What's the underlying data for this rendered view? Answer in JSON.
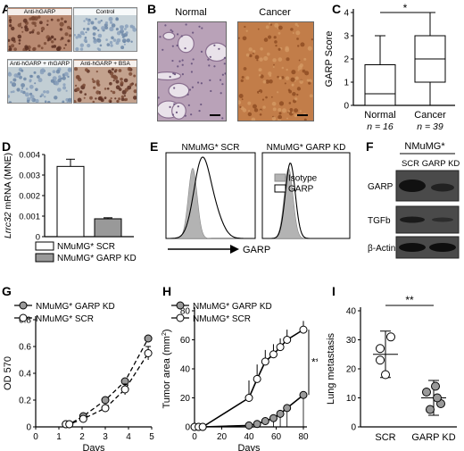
{
  "panels": {
    "A": {
      "label": "A",
      "tiles": [
        {
          "caption": "Anti-hGARP",
          "color": "#b98a72"
        },
        {
          "caption": "Control",
          "color": "#c9d4da"
        },
        {
          "caption": "Anti-hGARP + rhGARP",
          "color": "#c2ced4"
        },
        {
          "caption": "Anti-hGARP + BSA",
          "color": "#c3a28e"
        }
      ]
    },
    "B": {
      "label": "B",
      "tiles": [
        {
          "caption": "Normal",
          "color": "#b9a2b8"
        },
        {
          "caption": "Cancer",
          "color": "#c27d49"
        }
      ]
    },
    "C": {
      "label": "C",
      "significance": "*",
      "chart_data": {
        "type": "box",
        "ylabel": "GARP Score",
        "ylim": [
          0,
          4
        ],
        "yticks": [
          "0",
          "1",
          "2",
          "3",
          "4"
        ],
        "categories": [
          "Normal",
          "Cancer"
        ],
        "n_labels": [
          "n = 16",
          "n = 39"
        ],
        "boxes": [
          {
            "min": 0,
            "q1": 0,
            "median": 0.5,
            "q3": 1.75,
            "max": 3
          },
          {
            "min": 0,
            "q1": 1,
            "median": 2,
            "q3": 3,
            "max": 4
          }
        ]
      }
    },
    "D": {
      "label": "D",
      "ylabel_italic": "Lrrc32",
      "ylabel_rest": " mRNA (MNE)",
      "chart_data": {
        "type": "bar",
        "ylim": [
          0,
          0.004
        ],
        "yticks": [
          "0",
          "0.001",
          "0.002",
          "0.003",
          "0.004"
        ],
        "series": [
          {
            "name": "NMuMG* SCR",
            "value": 0.00342,
            "error": 0.00035,
            "color": "#ffffff"
          },
          {
            "name": "NMuMG* GARP KD",
            "value": 0.00087,
            "error": 5e-05,
            "color": "#999999"
          }
        ]
      }
    },
    "E": {
      "label": "E",
      "plots": [
        "NMuMG* SCR",
        "NMuMG* GARP KD"
      ],
      "legend": [
        "Isotype",
        "GARP"
      ],
      "xlabel": "GARP"
    },
    "F": {
      "label": "F",
      "header": "NMuMG*",
      "columns": [
        "SCR",
        "GARP KD"
      ],
      "rows": [
        "GARP",
        "TGFb",
        "β-Actin"
      ]
    },
    "G": {
      "label": "G",
      "chart_data": {
        "type": "line",
        "xlabel": "Days",
        "ylabel": "OD 570",
        "xlim": [
          0,
          5
        ],
        "ylim": [
          0,
          0.8
        ],
        "xticks": [
          "0",
          "1",
          "2",
          "3",
          "4",
          "5"
        ],
        "yticks": [
          "0",
          "0.2",
          "0.4",
          "0.6",
          "0.8"
        ],
        "series": [
          {
            "name": "NMuMG* GARP KD",
            "fill": "#999999",
            "x": [
              1.3,
              1.45,
              2.05,
              3.0,
              3.85,
              4.85
            ],
            "y": [
              0.02,
              0.02,
              0.08,
              0.2,
              0.34,
              0.66
            ]
          },
          {
            "name": "NMuMG* SCR",
            "fill": "#ffffff",
            "x": [
              1.3,
              1.45,
              2.05,
              3.0,
              3.85,
              4.85
            ],
            "y": [
              0.02,
              0.02,
              0.06,
              0.14,
              0.28,
              0.55
            ],
            "err": [
              0,
              0,
              0,
              0,
              0.04,
              0.05
            ]
          }
        ]
      }
    },
    "H": {
      "label": "H",
      "significance": "**",
      "chart_data": {
        "type": "line",
        "xlabel": "Days",
        "ylabel_main": "Tumor area (mm",
        "ylabel_sup": "2",
        "ylabel_end": ")",
        "xlim": [
          0,
          80
        ],
        "ylim": [
          0,
          80
        ],
        "xticks": [
          "0",
          "20",
          "40",
          "60",
          "80"
        ],
        "yticks": [
          "0",
          "20",
          "40",
          "60",
          "80"
        ],
        "series": [
          {
            "name": "NMuMG* GARP KD",
            "fill": "#999999",
            "x": [
              0,
              3,
              6,
              40,
              46,
              52,
              58,
              63,
              68,
              80
            ],
            "y": [
              0,
              0,
              0,
              1,
              2,
              4,
              6,
              9,
              13,
              22
            ]
          },
          {
            "name": "NMuMG* SCR",
            "fill": "#ffffff",
            "x": [
              0,
              3,
              6,
              40,
              46,
              52,
              58,
              63,
              68,
              80
            ],
            "y": [
              0,
              0,
              0,
              20,
              33,
              45,
              50,
              55,
              60,
              67
            ],
            "err": [
              0,
              0,
              0,
              12,
              10,
              8,
              7,
              6,
              7,
              6
            ]
          }
        ]
      }
    },
    "I": {
      "label": "I",
      "significance": "**",
      "chart_data": {
        "type": "scatter",
        "ylabel": "Lung metastasis",
        "ylim": [
          0,
          40
        ],
        "yticks": [
          "0",
          "10",
          "20",
          "30",
          "40"
        ],
        "categories": [
          "SCR",
          "GARP KD"
        ],
        "groups": [
          {
            "name": "SCR",
            "fill": "#ffffff",
            "points": [
              31,
              27,
              23,
              18
            ],
            "mean": 25,
            "sd": 8
          },
          {
            "name": "GARP KD",
            "fill": "#999999",
            "points": [
              14,
              12,
              8,
              6,
              10
            ],
            "mean": 10,
            "sd": 6
          }
        ]
      }
    }
  }
}
